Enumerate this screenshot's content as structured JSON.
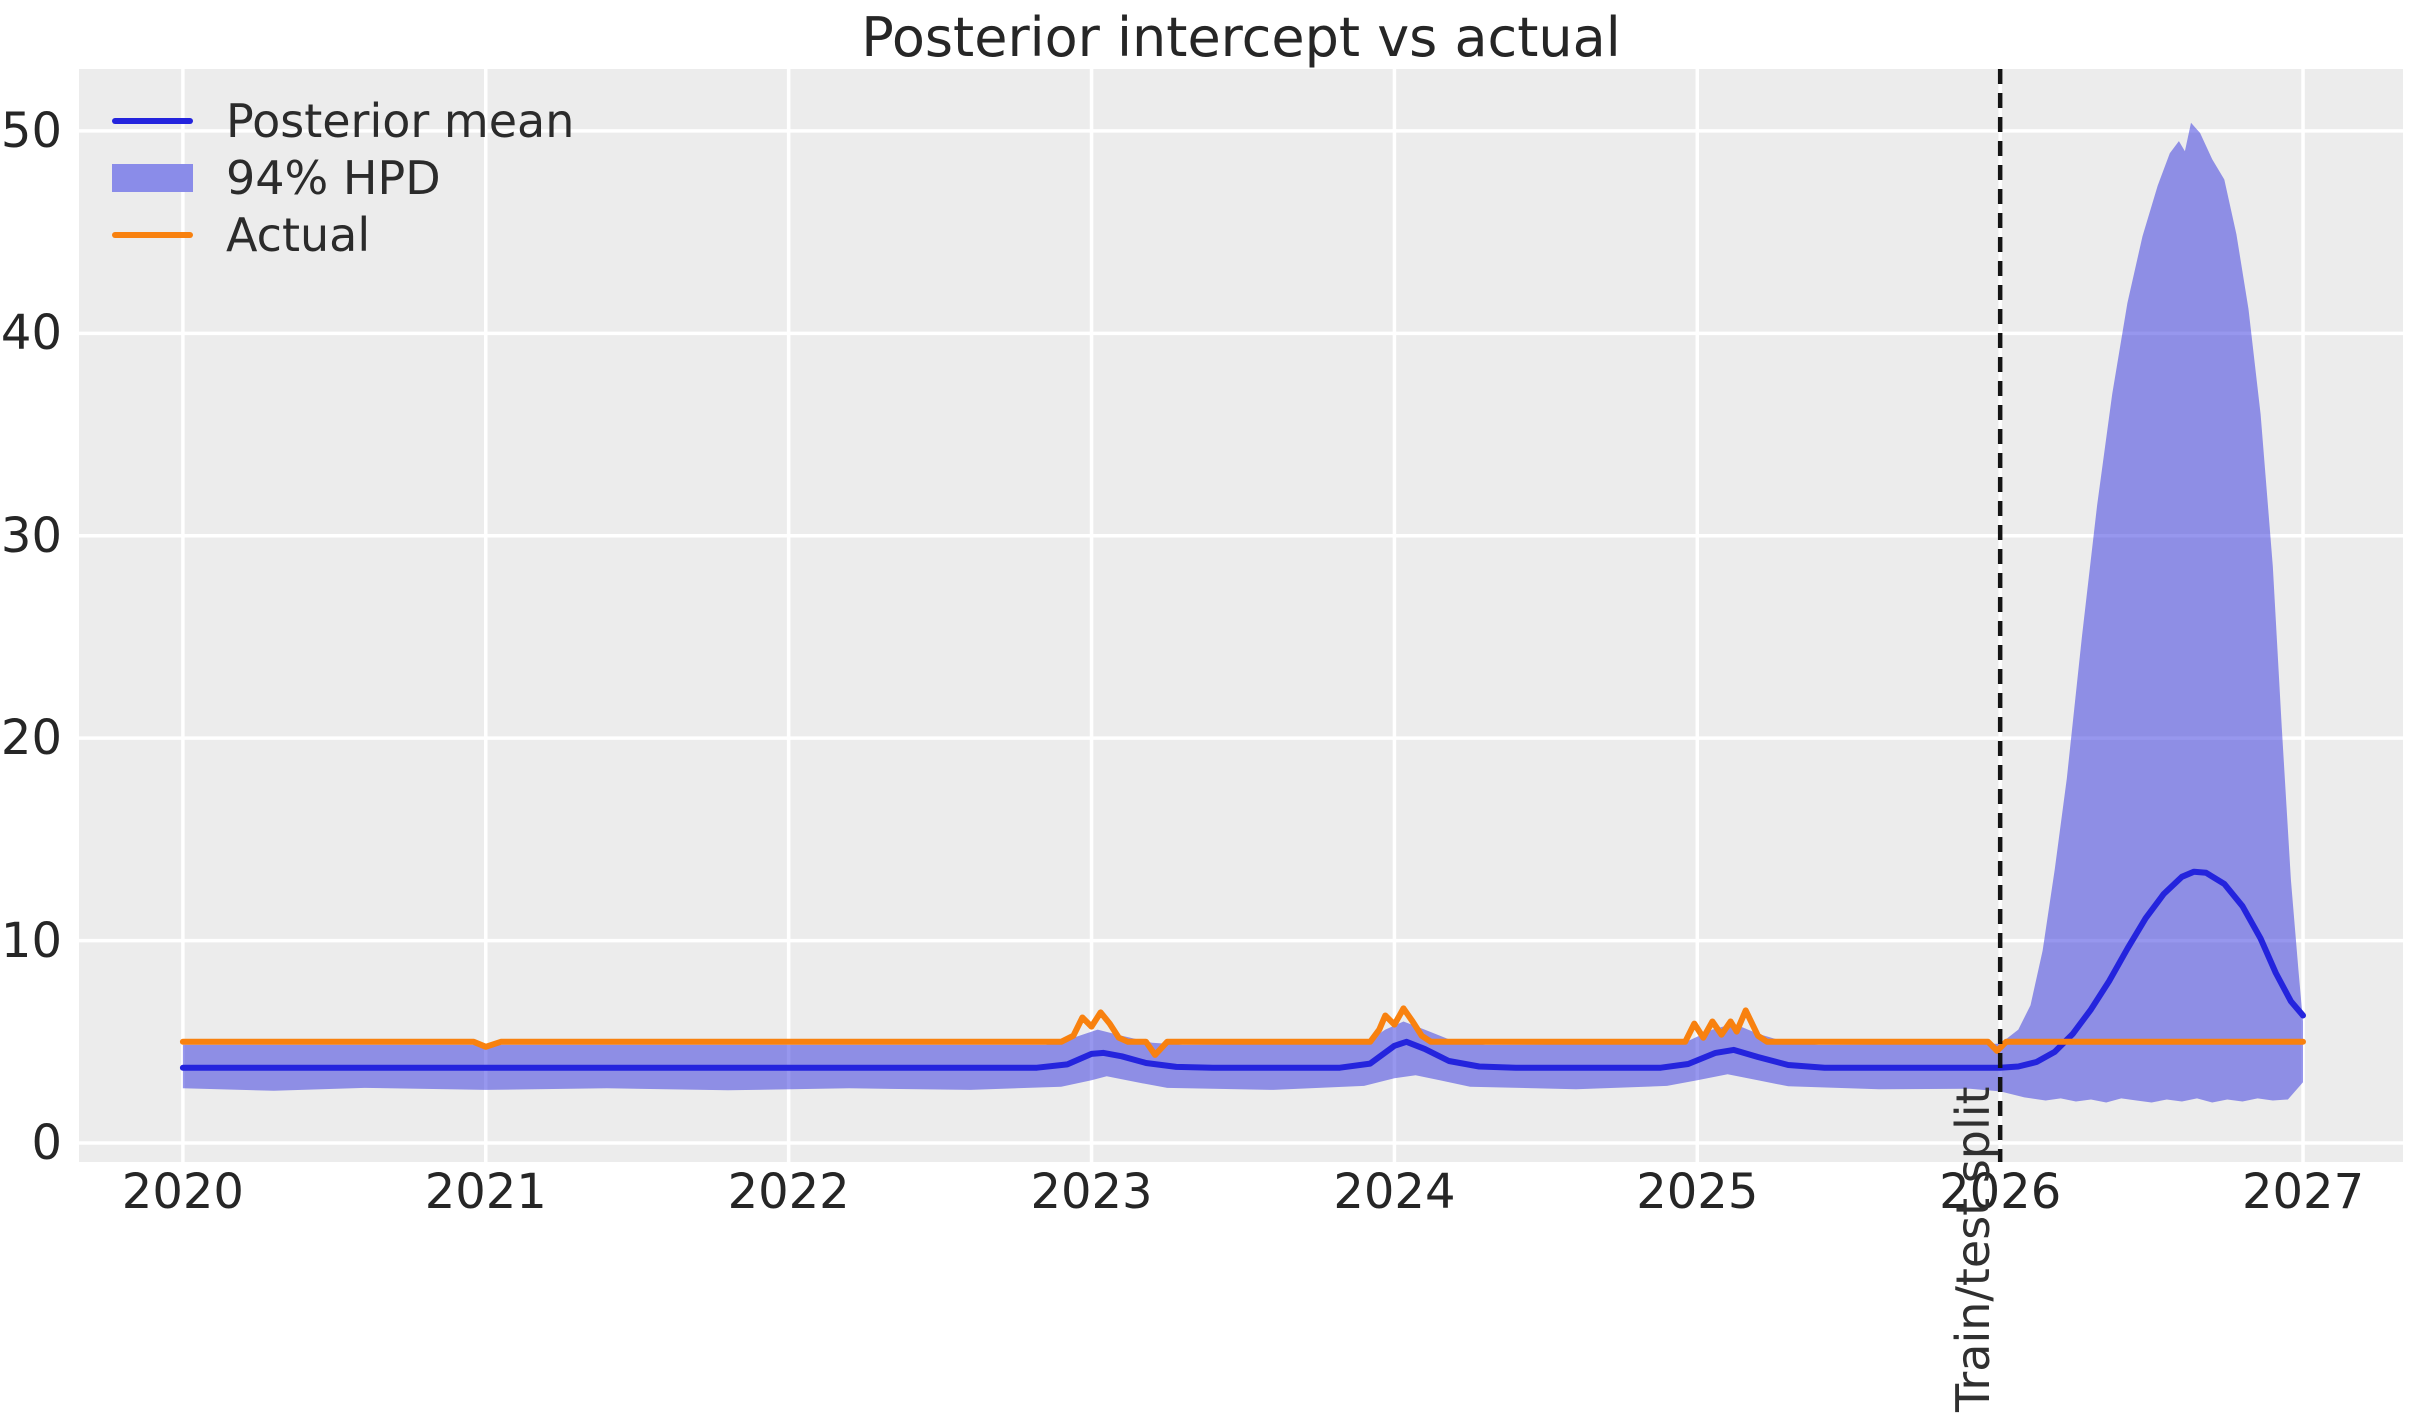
{
  "chart_data": {
    "type": "line",
    "title": "Posterior intercept vs actual",
    "xlabel": "",
    "ylabel": "",
    "grid": true,
    "legend_position": "upper left",
    "x_ticks": [
      2020,
      2021,
      2022,
      2023,
      2024,
      2025,
      2026,
      2027
    ],
    "y_ticks": [
      0,
      10,
      20,
      30,
      40,
      50
    ],
    "x_range": [
      2019.657,
      2027.33
    ],
    "y_range": [
      -0.94,
      53.06
    ],
    "colors": {
      "plot_background": "#ececec",
      "gridline": "#ffffff",
      "posterior_mean": "#2424dd",
      "hpd_band": "rgba(47,47,222,0.5)",
      "hpd_band_legend": "#8a8ce9",
      "actual": "#f8810f",
      "split_line": "#141414",
      "text": "#262626"
    },
    "legend": [
      {
        "label": "Posterior mean",
        "type": "line",
        "color": "#2424dd"
      },
      {
        "label": "94% HPD",
        "type": "patch",
        "color": "#8a8ce9"
      },
      {
        "label": "Actual",
        "type": "line",
        "color": "#f8810f"
      }
    ],
    "annotations": {
      "split_label": "Train/test split",
      "split_x": 2026.0
    },
    "series": [
      {
        "name": "Posterior mean",
        "points": [
          [
            2020.0,
            3.72
          ],
          [
            2022.82,
            3.72
          ],
          [
            2022.92,
            3.88
          ],
          [
            2023.0,
            4.4
          ],
          [
            2023.04,
            4.45
          ],
          [
            2023.1,
            4.28
          ],
          [
            2023.18,
            3.95
          ],
          [
            2023.28,
            3.76
          ],
          [
            2023.4,
            3.72
          ],
          [
            2023.82,
            3.72
          ],
          [
            2023.92,
            3.92
          ],
          [
            2024.0,
            4.8
          ],
          [
            2024.04,
            5.0
          ],
          [
            2024.1,
            4.65
          ],
          [
            2024.18,
            4.05
          ],
          [
            2024.28,
            3.78
          ],
          [
            2024.4,
            3.72
          ],
          [
            2024.88,
            3.72
          ],
          [
            2024.97,
            3.9
          ],
          [
            2025.06,
            4.45
          ],
          [
            2025.12,
            4.6
          ],
          [
            2025.2,
            4.25
          ],
          [
            2025.3,
            3.85
          ],
          [
            2025.42,
            3.72
          ],
          [
            2026.0,
            3.72
          ],
          [
            2026.06,
            3.78
          ],
          [
            2026.12,
            4.0
          ],
          [
            2026.18,
            4.5
          ],
          [
            2026.24,
            5.4
          ],
          [
            2026.3,
            6.6
          ],
          [
            2026.36,
            8.0
          ],
          [
            2026.42,
            9.6
          ],
          [
            2026.48,
            11.1
          ],
          [
            2026.54,
            12.3
          ],
          [
            2026.6,
            13.15
          ],
          [
            2026.64,
            13.4
          ],
          [
            2026.68,
            13.35
          ],
          [
            2026.74,
            12.8
          ],
          [
            2026.8,
            11.7
          ],
          [
            2026.86,
            10.1
          ],
          [
            2026.91,
            8.4
          ],
          [
            2026.96,
            7.0
          ],
          [
            2027.0,
            6.3
          ]
        ]
      },
      {
        "name": "94% HPD upper",
        "points": [
          [
            2020.0,
            4.85
          ],
          [
            2022.85,
            4.85
          ],
          [
            2022.95,
            5.25
          ],
          [
            2023.02,
            5.6
          ],
          [
            2023.1,
            5.3
          ],
          [
            2023.2,
            4.95
          ],
          [
            2023.3,
            4.85
          ],
          [
            2023.9,
            4.9
          ],
          [
            2023.97,
            5.6
          ],
          [
            2024.03,
            6.0
          ],
          [
            2024.1,
            5.6
          ],
          [
            2024.2,
            5.0
          ],
          [
            2024.3,
            4.85
          ],
          [
            2024.95,
            4.9
          ],
          [
            2025.05,
            5.6
          ],
          [
            2025.12,
            5.9
          ],
          [
            2025.2,
            5.4
          ],
          [
            2025.3,
            4.95
          ],
          [
            2025.4,
            4.85
          ],
          [
            2026.0,
            4.9
          ],
          [
            2026.06,
            5.6
          ],
          [
            2026.1,
            6.8
          ],
          [
            2026.14,
            9.5
          ],
          [
            2026.18,
            13.5
          ],
          [
            2026.22,
            18.0
          ],
          [
            2026.27,
            25.0
          ],
          [
            2026.32,
            31.5
          ],
          [
            2026.37,
            37.0
          ],
          [
            2026.42,
            41.5
          ],
          [
            2026.47,
            44.8
          ],
          [
            2026.52,
            47.3
          ],
          [
            2026.56,
            48.9
          ],
          [
            2026.59,
            49.5
          ],
          [
            2026.61,
            49.0
          ],
          [
            2026.63,
            50.4
          ],
          [
            2026.66,
            49.9
          ],
          [
            2026.7,
            48.6
          ],
          [
            2026.74,
            47.6
          ],
          [
            2026.78,
            44.9
          ],
          [
            2026.82,
            41.2
          ],
          [
            2026.86,
            36.0
          ],
          [
            2026.9,
            28.5
          ],
          [
            2026.93,
            20.5
          ],
          [
            2026.96,
            13.0
          ],
          [
            2026.985,
            8.5
          ],
          [
            2027.0,
            6.0
          ]
        ]
      },
      {
        "name": "94% HPD lower",
        "points": [
          [
            2020.0,
            2.7
          ],
          [
            2020.3,
            2.58
          ],
          [
            2020.6,
            2.72
          ],
          [
            2021.0,
            2.62
          ],
          [
            2021.4,
            2.7
          ],
          [
            2021.8,
            2.6
          ],
          [
            2022.2,
            2.7
          ],
          [
            2022.6,
            2.62
          ],
          [
            2022.9,
            2.78
          ],
          [
            2023.0,
            3.1
          ],
          [
            2023.05,
            3.3
          ],
          [
            2023.15,
            3.0
          ],
          [
            2023.25,
            2.72
          ],
          [
            2023.6,
            2.62
          ],
          [
            2023.9,
            2.82
          ],
          [
            2024.0,
            3.2
          ],
          [
            2024.07,
            3.35
          ],
          [
            2024.15,
            3.1
          ],
          [
            2024.25,
            2.78
          ],
          [
            2024.6,
            2.65
          ],
          [
            2024.9,
            2.82
          ],
          [
            2025.0,
            3.1
          ],
          [
            2025.1,
            3.4
          ],
          [
            2025.2,
            3.1
          ],
          [
            2025.3,
            2.8
          ],
          [
            2025.6,
            2.65
          ],
          [
            2025.9,
            2.68
          ],
          [
            2026.0,
            2.55
          ],
          [
            2026.08,
            2.25
          ],
          [
            2026.15,
            2.1
          ],
          [
            2026.2,
            2.2
          ],
          [
            2026.25,
            2.05
          ],
          [
            2026.3,
            2.15
          ],
          [
            2026.35,
            2.0
          ],
          [
            2026.4,
            2.2
          ],
          [
            2026.45,
            2.1
          ],
          [
            2026.5,
            2.0
          ],
          [
            2026.55,
            2.15
          ],
          [
            2026.6,
            2.05
          ],
          [
            2026.65,
            2.2
          ],
          [
            2026.7,
            2.0
          ],
          [
            2026.75,
            2.15
          ],
          [
            2026.8,
            2.05
          ],
          [
            2026.85,
            2.2
          ],
          [
            2026.9,
            2.1
          ],
          [
            2026.95,
            2.15
          ],
          [
            2027.0,
            3.0
          ]
        ]
      },
      {
        "name": "Actual",
        "points": [
          [
            2020.0,
            5
          ],
          [
            2020.96,
            5
          ],
          [
            2021.0,
            4.75
          ],
          [
            2021.05,
            5
          ],
          [
            2022.9,
            5
          ],
          [
            2022.94,
            5.3
          ],
          [
            2022.97,
            6.2
          ],
          [
            2023.0,
            5.75
          ],
          [
            2023.03,
            6.45
          ],
          [
            2023.06,
            5.9
          ],
          [
            2023.09,
            5.2
          ],
          [
            2023.12,
            5
          ],
          [
            2023.18,
            5
          ],
          [
            2023.21,
            4.35
          ],
          [
            2023.25,
            5
          ],
          [
            2023.92,
            5
          ],
          [
            2023.95,
            5.6
          ],
          [
            2023.97,
            6.3
          ],
          [
            2024.0,
            5.85
          ],
          [
            2024.03,
            6.65
          ],
          [
            2024.06,
            6.0
          ],
          [
            2024.09,
            5.3
          ],
          [
            2024.12,
            5
          ],
          [
            2024.96,
            5
          ],
          [
            2024.99,
            5.9
          ],
          [
            2025.02,
            5.2
          ],
          [
            2025.05,
            6.0
          ],
          [
            2025.08,
            5.35
          ],
          [
            2025.11,
            6.0
          ],
          [
            2025.13,
            5.5
          ],
          [
            2025.16,
            6.55
          ],
          [
            2025.2,
            5.3
          ],
          [
            2025.23,
            5
          ],
          [
            2025.96,
            5
          ],
          [
            2025.99,
            4.55
          ],
          [
            2026.02,
            5
          ],
          [
            2027.0,
            5
          ]
        ]
      }
    ]
  }
}
